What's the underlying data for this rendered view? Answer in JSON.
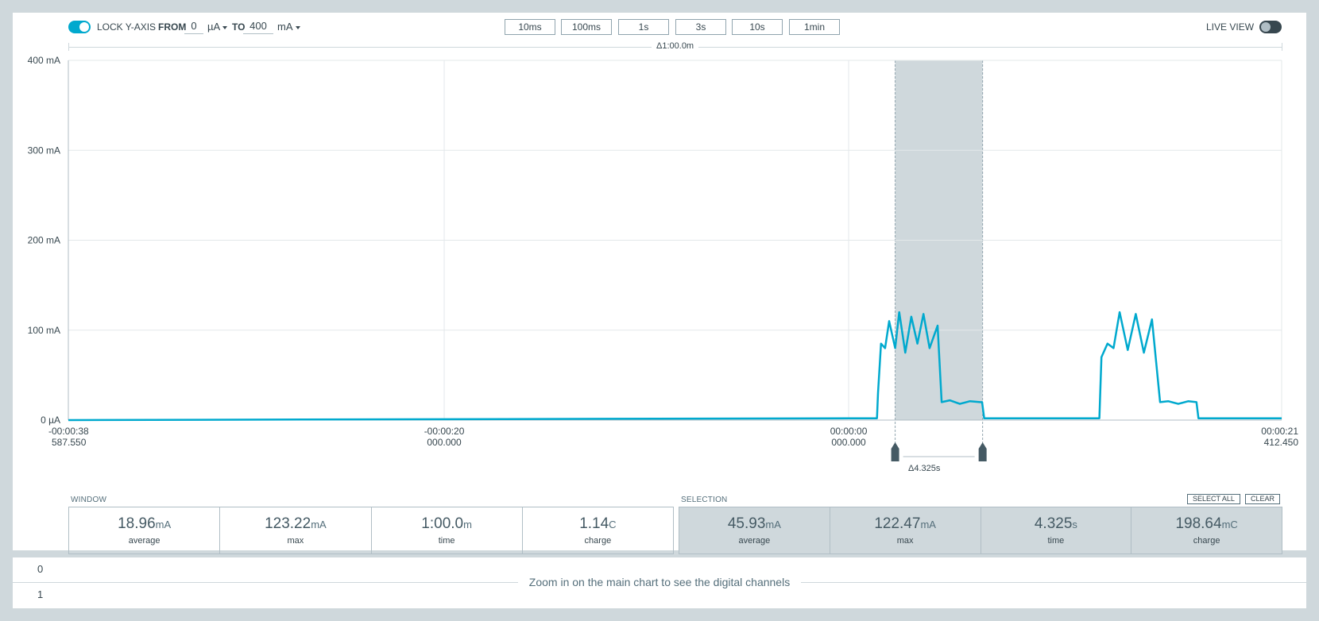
{
  "toolbar": {
    "lock_label": "LOCK Y-AXIS",
    "from_label": "FROM",
    "from_value": "0",
    "from_unit": "µA",
    "to_label": "TO",
    "to_value": "400",
    "to_unit": "mA",
    "live_view_label": "LIVE VIEW",
    "lock_enabled": true,
    "live_view_enabled": false,
    "window_buttons": [
      "10ms",
      "100ms",
      "1s",
      "3s",
      "10s",
      "1min"
    ]
  },
  "window_delta": "Δ1:00.0m",
  "selection_delta": "Δ4.325s",
  "chart": {
    "y_ticks": [
      "400 mA",
      "300 mA",
      "200 mA",
      "100 mA",
      "0 µA"
    ],
    "x_ticks": [
      {
        "top": "-00:00:38",
        "bottom": "587.550"
      },
      {
        "top": "-00:00:20",
        "bottom": "000.000"
      },
      {
        "top": "00:00:00",
        "bottom": "000.000"
      },
      {
        "top": "00:00:21",
        "bottom": "412.450"
      }
    ],
    "colors": {
      "trace": "#00a9ce",
      "selection": "#cfd8dc",
      "grid": "#e3e8ea"
    }
  },
  "chart_data": {
    "type": "line",
    "title": "",
    "xlabel": "",
    "ylabel": "",
    "x_unit": "s",
    "y_unit": "mA",
    "xlim": [
      -38.58755,
      21.41245
    ],
    "ylim": [
      0,
      400
    ],
    "grid": true,
    "selection": {
      "start_s": 2.3,
      "end_s": 6.625,
      "duration": "4.325s"
    },
    "series": [
      {
        "x": [
          -38.58755,
          0.0,
          1.4,
          1.45,
          1.6,
          1.8,
          2.0,
          2.3,
          2.5,
          2.8,
          3.1,
          3.4,
          3.7,
          4.0,
          4.4,
          4.6,
          5.0,
          5.5,
          6.0,
          6.5,
          6.6,
          6.7,
          8.0,
          10.0,
          12.0,
          12.4,
          12.5,
          12.8,
          13.1,
          13.4,
          13.8,
          14.2,
          14.6,
          15.0,
          15.4,
          15.8,
          16.3,
          16.8,
          17.2,
          17.3,
          17.6,
          19.0,
          21.41245
        ],
        "y": [
          0,
          2,
          2,
          30,
          85,
          80,
          110,
          80,
          120,
          75,
          115,
          85,
          118,
          80,
          105,
          20,
          22,
          18,
          21,
          20,
          20,
          2,
          2,
          2,
          2,
          2,
          70,
          85,
          80,
          120,
          78,
          118,
          75,
          112,
          20,
          21,
          18,
          21,
          20,
          2,
          2,
          2,
          2
        ]
      }
    ]
  },
  "window_stats": {
    "label": "WINDOW",
    "cells": [
      {
        "value": "18.96",
        "unit": "mA",
        "name": "average"
      },
      {
        "value": "123.22",
        "unit": "mA",
        "name": "max"
      },
      {
        "value": "1:00.0",
        "unit": "m",
        "name": "time"
      },
      {
        "value": "1.14",
        "unit": "C",
        "name": "charge"
      }
    ]
  },
  "selection_stats": {
    "label": "SELECTION",
    "select_all": "SELECT ALL",
    "clear": "CLEAR",
    "cells": [
      {
        "value": "45.93",
        "unit": "mA",
        "name": "average"
      },
      {
        "value": "122.47",
        "unit": "mA",
        "name": "max"
      },
      {
        "value": "4.325",
        "unit": "s",
        "name": "time"
      },
      {
        "value": "198.64",
        "unit": "mC",
        "name": "charge"
      }
    ]
  },
  "digital": {
    "channels": [
      "0",
      "1"
    ],
    "message": "Zoom in on the main chart to see the digital channels"
  }
}
